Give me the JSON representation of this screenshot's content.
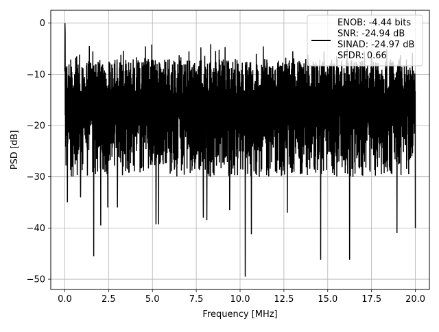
{
  "chart_data": {
    "type": "line",
    "title": "",
    "xlabel": "Frequency [MHz]",
    "ylabel": "PSD [dB]",
    "xlim": [
      -0.8,
      20.8
    ],
    "ylim": [
      -52,
      2.5
    ],
    "x_ticks": [
      0.0,
      2.5,
      5.0,
      7.5,
      10.0,
      12.5,
      15.0,
      17.5,
      20.0
    ],
    "x_tick_labels": [
      "0.0",
      "2.5",
      "5.0",
      "7.5",
      "10.0",
      "12.5",
      "15.0",
      "17.5",
      "20.0"
    ],
    "y_ticks": [
      0,
      -10,
      -20,
      -30,
      -40,
      -50
    ],
    "y_tick_labels": [
      "0",
      "−10",
      "−20",
      "−30",
      "−40",
      "−50"
    ],
    "grid": true,
    "legend_position": "top-right",
    "legend_lines": [
      "ENOB: -4.44 bits",
      "SNR: -24.94 dB",
      "SINAD: -24.97 dB",
      "SFDR: 0.66"
    ],
    "series": [
      {
        "color": "#000000",
        "x_range": [
          0,
          20
        ],
        "num_points": 2000,
        "typical_peak_db": -7,
        "typical_floor_db": -28,
        "max_value_db": 0,
        "max_at_mhz": 0.02,
        "deep_nulls": [
          {
            "x": 0.15,
            "y": -35
          },
          {
            "x": 0.9,
            "y": -34
          },
          {
            "x": 1.65,
            "y": -45.5
          },
          {
            "x": 2.05,
            "y": -39.5
          },
          {
            "x": 2.45,
            "y": -36
          },
          {
            "x": 3.0,
            "y": -36
          },
          {
            "x": 5.2,
            "y": -39.3
          },
          {
            "x": 5.35,
            "y": -39.3
          },
          {
            "x": 7.9,
            "y": -38
          },
          {
            "x": 8.1,
            "y": -38.5
          },
          {
            "x": 9.4,
            "y": -36.5
          },
          {
            "x": 10.3,
            "y": -49.5
          },
          {
            "x": 10.65,
            "y": -41.2
          },
          {
            "x": 12.7,
            "y": -37
          },
          {
            "x": 14.6,
            "y": -46.2
          },
          {
            "x": 16.25,
            "y": -46.2
          },
          {
            "x": 18.95,
            "y": -41
          },
          {
            "x": 20.0,
            "y": -40
          }
        ]
      }
    ]
  }
}
